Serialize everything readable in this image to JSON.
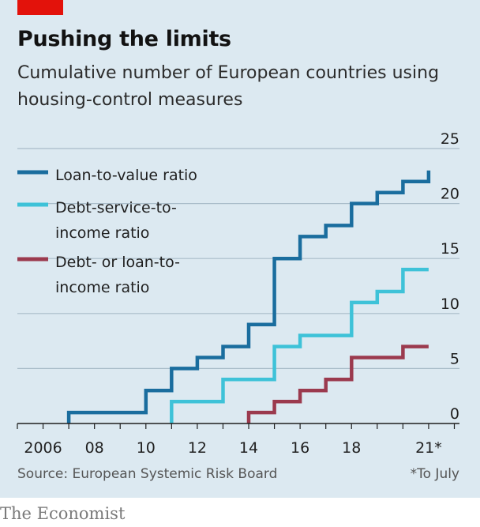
{
  "header": {
    "title": "Pushing the limits",
    "subtitle": "Cumulative number of European countries using housing-control measures"
  },
  "footer": {
    "source": "Source: European Systemic Risk Board",
    "footnote": "*To July",
    "brand": "The Economist"
  },
  "colors": {
    "background": "#dce9f1",
    "accent_red": "#e3120b",
    "ltv": "#1a6d9e",
    "dsti": "#3ec2d8",
    "dti": "#9b3a4e"
  },
  "chart_data": {
    "type": "line",
    "step": true,
    "title": "Pushing the limits",
    "subtitle": "Cumulative number of European countries using housing-control measures",
    "xlim": [
      2005,
      2022.2
    ],
    "ylim": [
      0,
      25
    ],
    "y_ticks": [
      0,
      5,
      10,
      15,
      20,
      25
    ],
    "x_ticks": [
      {
        "value": 2006,
        "label": "2006"
      },
      {
        "value": 2008,
        "label": "08"
      },
      {
        "value": 2010,
        "label": "10"
      },
      {
        "value": 2012,
        "label": "12"
      },
      {
        "value": 2014,
        "label": "14"
      },
      {
        "value": 2016,
        "label": "16"
      },
      {
        "value": 2018,
        "label": "18"
      },
      {
        "value": 2021,
        "label": "21*"
      }
    ],
    "grid": "horizontal",
    "legend_position": "top-left",
    "series": [
      {
        "name": "Loan-to-value ratio",
        "legend_lines": [
          "Loan-to-value ratio"
        ],
        "color": "#1a6d9e",
        "points": [
          [
            2007,
            0
          ],
          [
            2007,
            1
          ],
          [
            2010,
            1
          ],
          [
            2010,
            3
          ],
          [
            2011,
            3
          ],
          [
            2011,
            5
          ],
          [
            2012,
            5
          ],
          [
            2012,
            6
          ],
          [
            2013,
            6
          ],
          [
            2013,
            7
          ],
          [
            2014,
            7
          ],
          [
            2014,
            9
          ],
          [
            2015,
            9
          ],
          [
            2015,
            15
          ],
          [
            2016,
            15
          ],
          [
            2016,
            17
          ],
          [
            2017,
            17
          ],
          [
            2017,
            18
          ],
          [
            2018,
            18
          ],
          [
            2018,
            20
          ],
          [
            2019,
            20
          ],
          [
            2019,
            21
          ],
          [
            2020,
            21
          ],
          [
            2020,
            22
          ],
          [
            2021,
            22
          ],
          [
            2021,
            23
          ]
        ]
      },
      {
        "name": "Debt-service-to-income ratio",
        "legend_lines": [
          "Debt-service-to-",
          "income ratio"
        ],
        "color": "#3ec2d8",
        "points": [
          [
            2011,
            0
          ],
          [
            2011,
            2
          ],
          [
            2013,
            2
          ],
          [
            2013,
            4
          ],
          [
            2015,
            4
          ],
          [
            2015,
            7
          ],
          [
            2016,
            7
          ],
          [
            2016,
            8
          ],
          [
            2018,
            8
          ],
          [
            2018,
            11
          ],
          [
            2019,
            11
          ],
          [
            2019,
            12
          ],
          [
            2020,
            12
          ],
          [
            2020,
            14
          ],
          [
            2021,
            14
          ]
        ]
      },
      {
        "name": "Debt- or loan-to-income ratio",
        "legend_lines": [
          "Debt- or loan-to-",
          "income ratio"
        ],
        "color": "#9b3a4e",
        "points": [
          [
            2014,
            0
          ],
          [
            2014,
            1
          ],
          [
            2015,
            1
          ],
          [
            2015,
            2
          ],
          [
            2016,
            2
          ],
          [
            2016,
            3
          ],
          [
            2017,
            3
          ],
          [
            2017,
            4
          ],
          [
            2018,
            4
          ],
          [
            2018,
            6
          ],
          [
            2020,
            6
          ],
          [
            2020,
            7
          ],
          [
            2021,
            7
          ]
        ]
      }
    ]
  }
}
